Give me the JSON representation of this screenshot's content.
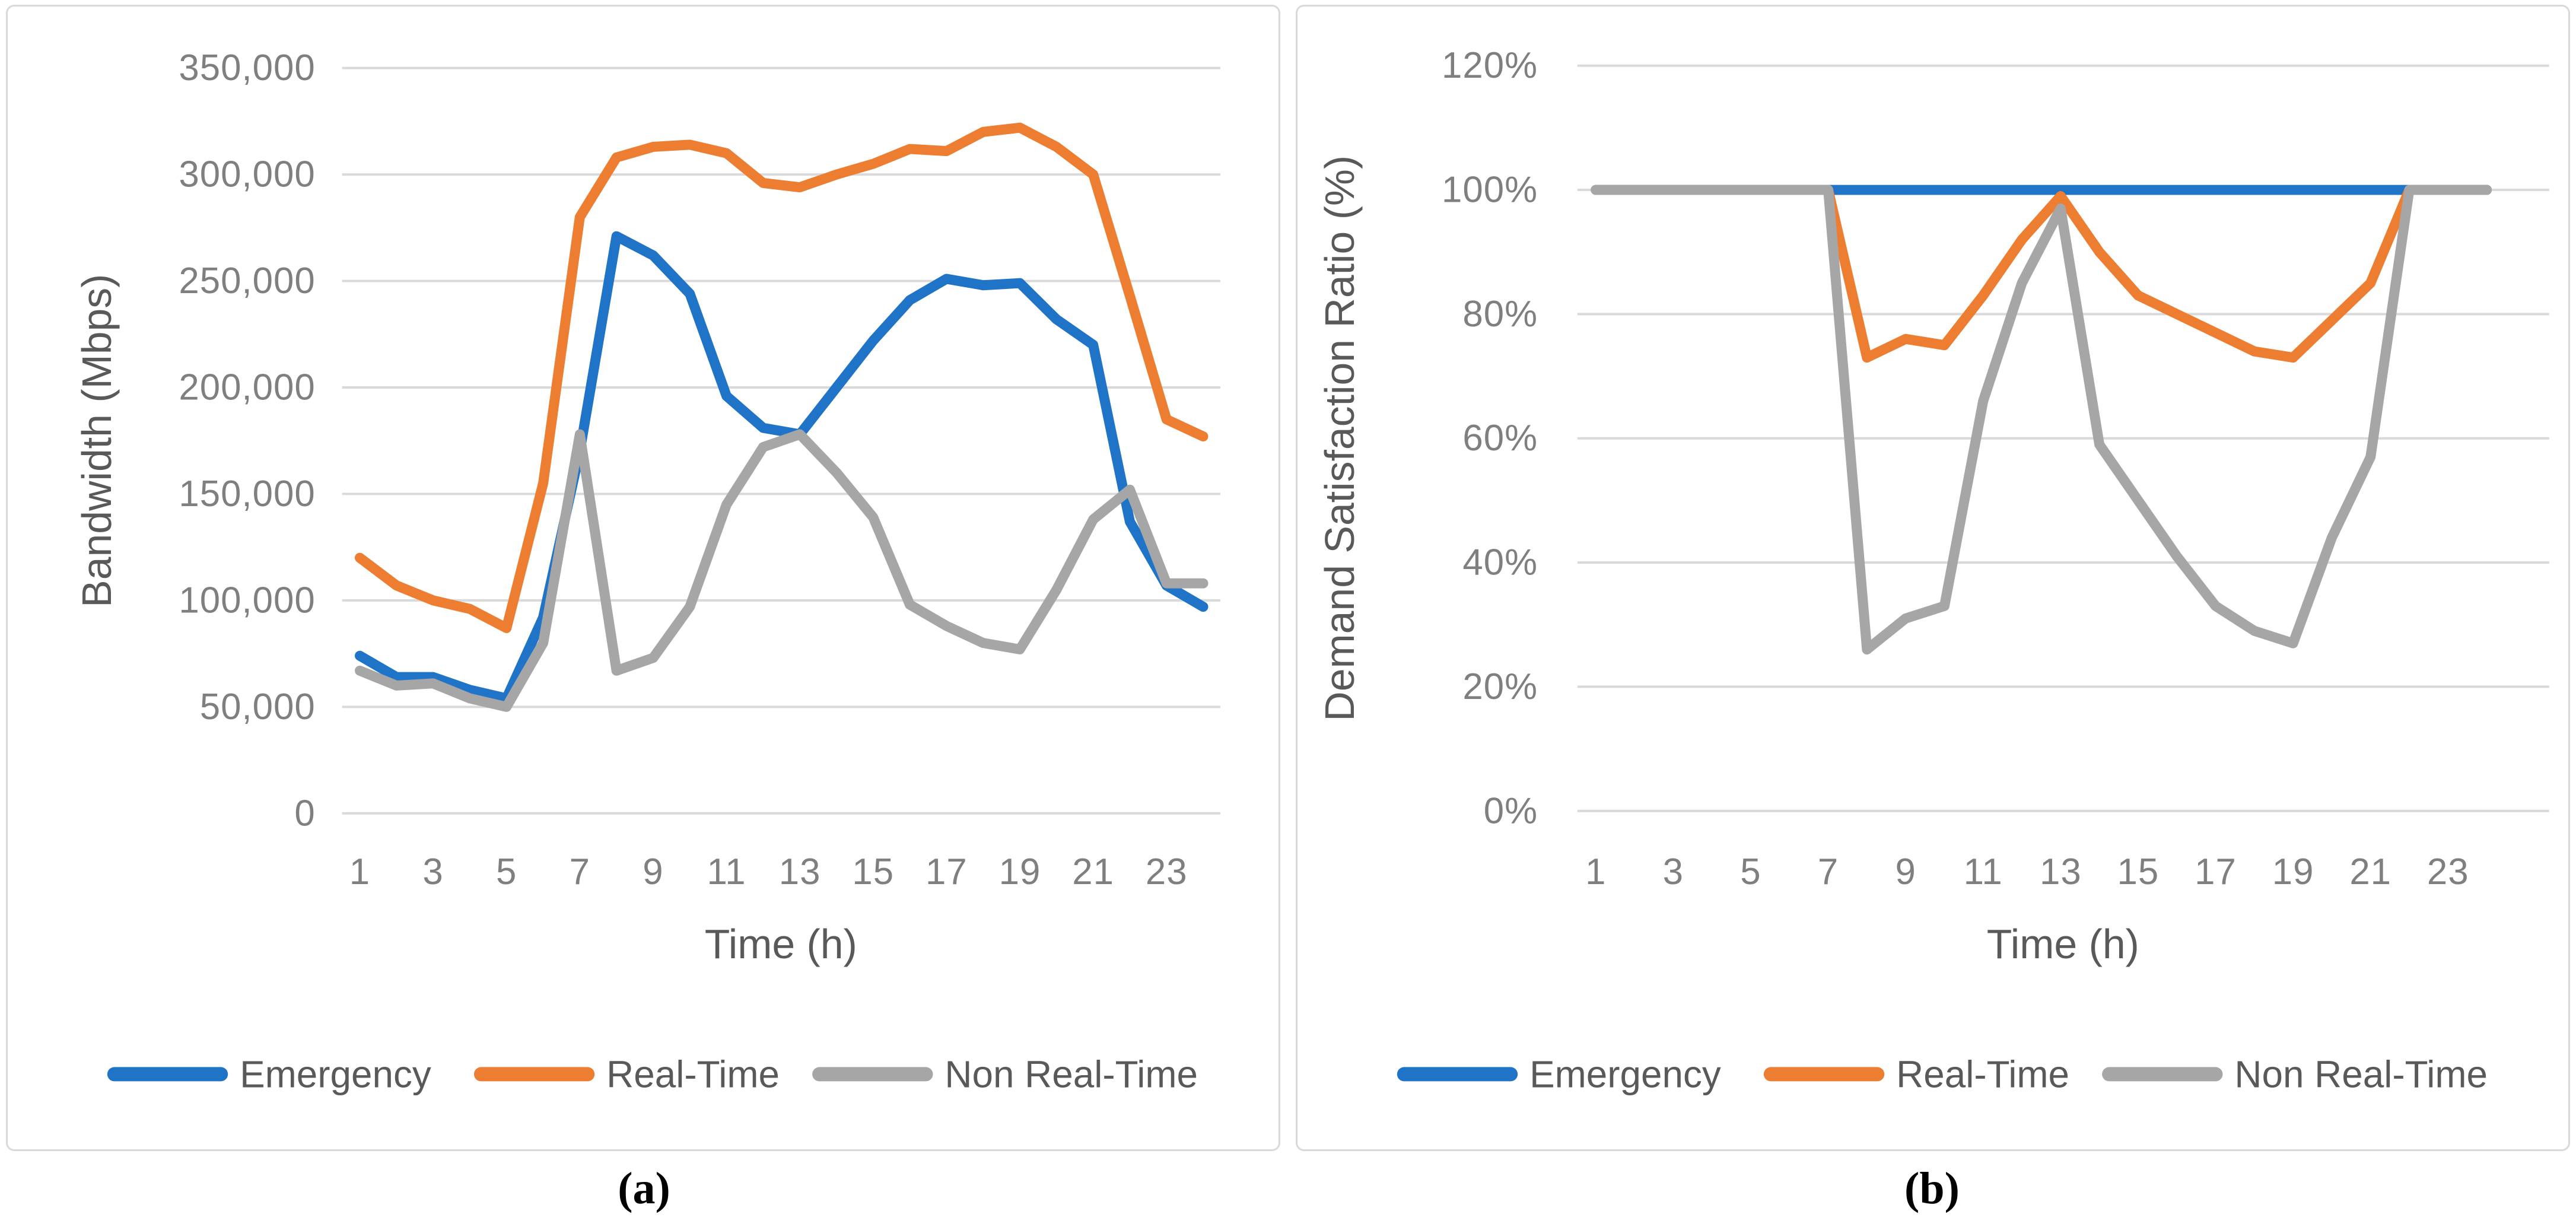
{
  "figure": {
    "captions": {
      "a": "(a)",
      "b": "(b)"
    },
    "colors": {
      "emergency": "#2074c8",
      "real_time": "#ed7d31",
      "non_real_time": "#a6a6a6",
      "gridline": "#d9d9d9",
      "tick_text": "#7f7f7f",
      "title_text": "#595959"
    }
  },
  "chart_data": [
    {
      "id": "a",
      "type": "line",
      "title": "",
      "xlabel": "Time (h)",
      "ylabel": "Bandwidth (Mbps)",
      "grid": true,
      "legend_position": "bottom",
      "x": [
        1,
        2,
        3,
        4,
        5,
        6,
        7,
        8,
        9,
        10,
        11,
        12,
        13,
        14,
        15,
        16,
        17,
        18,
        19,
        20,
        21,
        22,
        23,
        24
      ],
      "x_tick_positions": [
        1,
        3,
        5,
        7,
        9,
        11,
        13,
        15,
        17,
        19,
        21,
        23
      ],
      "x_tick_labels": [
        "1",
        "3",
        "5",
        "7",
        "9",
        "11",
        "13",
        "15",
        "17",
        "19",
        "21",
        "23"
      ],
      "ylim": [
        0,
        350000
      ],
      "y_ticks": [
        0,
        50000,
        100000,
        150000,
        200000,
        250000,
        300000,
        350000
      ],
      "y_tick_labels": [
        "0",
        "50,000",
        "100,000",
        "150,000",
        "200,000",
        "250,000",
        "300,000",
        "350,000"
      ],
      "series": [
        {
          "name": "Emergency",
          "color_key": "emergency",
          "values": [
            74000,
            64000,
            64000,
            58000,
            54000,
            92000,
            170000,
            271000,
            262000,
            244000,
            196000,
            181000,
            178000,
            200000,
            222000,
            241000,
            251000,
            248000,
            249000,
            232000,
            220000,
            137000,
            107000,
            97000
          ]
        },
        {
          "name": "Real-Time",
          "color_key": "real_time",
          "values": [
            120000,
            107000,
            100000,
            96000,
            87000,
            155000,
            280000,
            308000,
            313000,
            314000,
            310000,
            296000,
            294000,
            300000,
            305000,
            312000,
            311000,
            320000,
            322000,
            313000,
            300000,
            243000,
            185000,
            177000
          ]
        },
        {
          "name": "Non Real-Time",
          "color_key": "non_real_time",
          "values": [
            67000,
            60000,
            61000,
            54000,
            50000,
            80000,
            178000,
            67000,
            73000,
            97000,
            145000,
            172000,
            178000,
            160000,
            139000,
            98000,
            88000,
            80000,
            77000,
            105000,
            138000,
            152000,
            108000,
            108000
          ]
        }
      ]
    },
    {
      "id": "b",
      "type": "line",
      "title": "",
      "xlabel": "Time (h)",
      "ylabel": "Demand Satisfaction Ratio (%)",
      "grid": true,
      "legend_position": "bottom",
      "x": [
        1,
        2,
        3,
        4,
        5,
        6,
        7,
        8,
        9,
        10,
        11,
        12,
        13,
        14,
        15,
        16,
        17,
        18,
        19,
        20,
        21,
        22,
        23,
        24
      ],
      "x_tick_positions": [
        1,
        3,
        5,
        7,
        9,
        11,
        13,
        15,
        17,
        19,
        21,
        23
      ],
      "x_tick_labels": [
        "1",
        "3",
        "5",
        "7",
        "9",
        "11",
        "13",
        "15",
        "17",
        "19",
        "21",
        "23"
      ],
      "ylim": [
        0,
        120
      ],
      "y_ticks": [
        0,
        20,
        40,
        60,
        80,
        100,
        120
      ],
      "y_tick_labels": [
        "0%",
        "20%",
        "40%",
        "60%",
        "80%",
        "100%",
        "120%"
      ],
      "series": [
        {
          "name": "Emergency",
          "color_key": "emergency",
          "values": [
            100,
            100,
            100,
            100,
            100,
            100,
            100,
            100,
            100,
            100,
            100,
            100,
            100,
            100,
            100,
            100,
            100,
            100,
            100,
            100,
            100,
            100,
            100,
            100
          ]
        },
        {
          "name": "Real-Time",
          "color_key": "real_time",
          "values": [
            100,
            100,
            100,
            100,
            100,
            100,
            100,
            73,
            76,
            75,
            83,
            92,
            99,
            90,
            83,
            80,
            77,
            74,
            73,
            79,
            85,
            100,
            100,
            100
          ]
        },
        {
          "name": "Non Real-Time",
          "color_key": "non_real_time",
          "values": [
            100,
            100,
            100,
            100,
            100,
            100,
            100,
            26,
            31,
            33,
            66,
            85,
            97,
            59,
            50,
            41,
            33,
            29,
            27,
            44,
            57,
            100,
            100,
            100
          ]
        }
      ]
    }
  ]
}
